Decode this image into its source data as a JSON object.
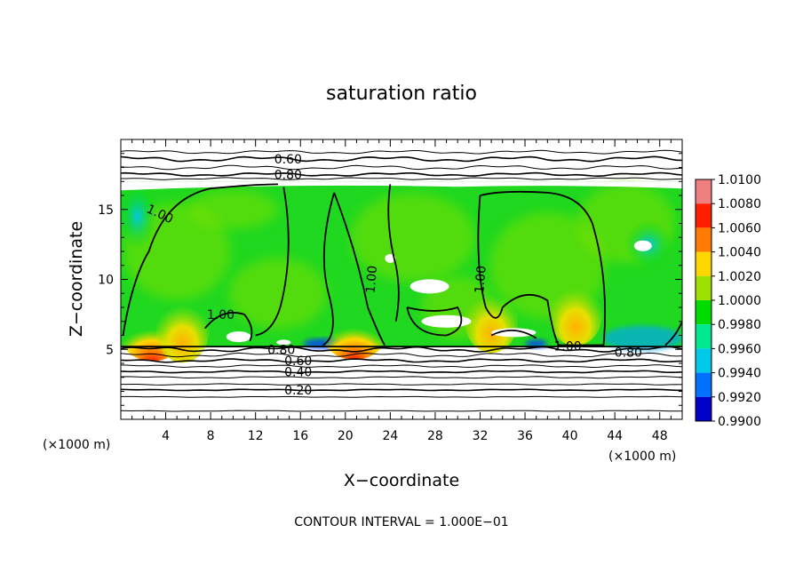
{
  "chart_data": {
    "type": "heatmap",
    "title": "saturation ratio",
    "xlabel": "X−coordinate",
    "ylabel": "Z−coordinate",
    "x_unit": "(×1000 m)",
    "y_unit": "(×1000 m)",
    "xlim": [
      0,
      50
    ],
    "ylim": [
      0,
      20
    ],
    "x_ticks": [
      4,
      8,
      12,
      16,
      20,
      24,
      28,
      32,
      36,
      40,
      44,
      48
    ],
    "y_ticks": [
      5,
      10,
      15
    ],
    "x_tick_labels": [
      "4",
      "8",
      "12",
      "16",
      "20",
      "24",
      "28",
      "32",
      "36",
      "40",
      "44",
      "48"
    ],
    "y_tick_labels": [
      "5",
      "10",
      "15"
    ],
    "colorbar": {
      "min": 0.99,
      "max": 1.01,
      "labels": [
        "1.0100",
        "1.0080",
        "1.0060",
        "1.0040",
        "1.0020",
        "1.0000",
        "0.9980",
        "0.9960",
        "0.9940",
        "0.9920",
        "0.9900"
      ],
      "colors": [
        "#f08080",
        "#ff1e00",
        "#ff7a00",
        "#ffd700",
        "#9ee000",
        "#00dc00",
        "#00e890",
        "#00c8e6",
        "#0070ff",
        "#0000c8",
        "#300080"
      ]
    },
    "contour_labels": [
      {
        "text": "0.60",
        "x": 14.9,
        "z": 18.6
      },
      {
        "text": "0.80",
        "x": 14.9,
        "z": 17.5
      },
      {
        "text": "1.00",
        "x": 3.5,
        "z": 14.7,
        "rotate": 25
      },
      {
        "text": "1.00",
        "x": 8.9,
        "z": 7.5
      },
      {
        "text": "1.00",
        "x": 22.3,
        "z": 10.0,
        "rotate": -85
      },
      {
        "text": "1.00",
        "x": 32.0,
        "z": 10.0,
        "rotate": -85
      },
      {
        "text": "1.00",
        "x": 39.8,
        "z": 5.25
      },
      {
        "text": "0.80",
        "x": 14.3,
        "z": 5.0
      },
      {
        "text": "0.80",
        "x": 45.2,
        "z": 4.8
      },
      {
        "text": "0.60",
        "x": 15.8,
        "z": 4.2
      },
      {
        "text": "0.40",
        "x": 15.8,
        "z": 3.4
      },
      {
        "text": "0.20",
        "x": 15.8,
        "z": 2.1
      }
    ],
    "saturation_layer": {
      "z_bottom": 5.2,
      "z_top": 17.0
    },
    "warm_spots": [
      {
        "x": 2.8,
        "z": 5.2,
        "value": 1.009
      },
      {
        "x": 5.5,
        "z": 5.3,
        "value": 1.006
      },
      {
        "x": 20.8,
        "z": 5.3,
        "value": 1.009
      },
      {
        "x": 33.0,
        "z": 6.0,
        "value": 1.006
      },
      {
        "x": 40.5,
        "z": 6.5,
        "value": 1.004
      }
    ],
    "contour_interval": "CONTOUR INTERVAL = 1.000E−01"
  }
}
